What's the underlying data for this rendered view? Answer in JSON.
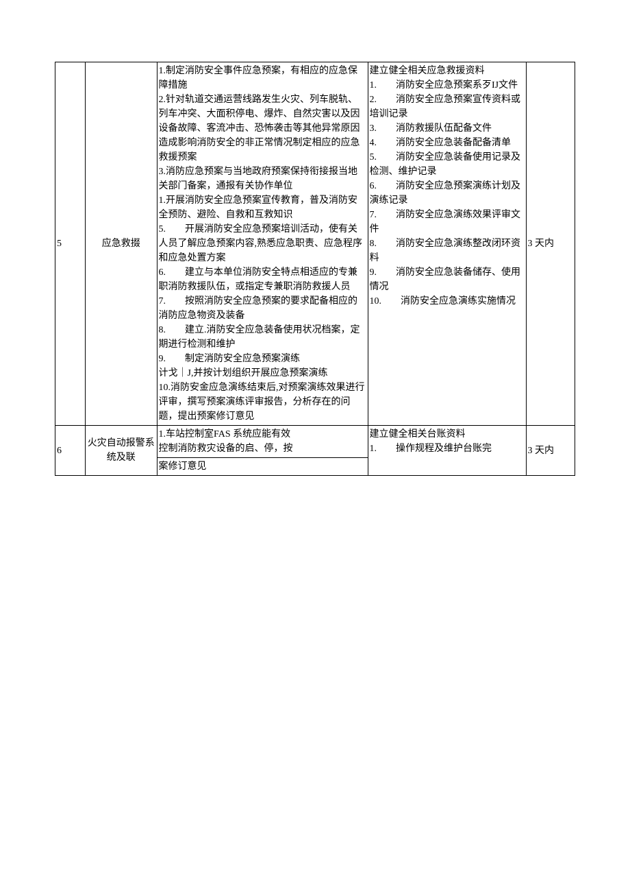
{
  "table": {
    "rows": [
      {
        "num": "5",
        "category": "应急救掇",
        "main": "1.制定消防安全事件应急预案，有相应的应急保障措施\n2.针对轨道交通运营线路发生火灾、列车脱轨、列车冲突、大面积停电、爆炸、自然灾害以及因设备故障、客流冲击、恐怖袭击等其他异常原因造成影响消防安全的非正常情况制定相应的应急救援预案\n3.消防应急预案与当地政府预案保持衔接报当地关部门备案，通报有关协作单位\n1.开展消防安全应急预案宣传教育，普及消防安全预防、避险、自救和互救知识\n5.　　开展消防安全应急预案培训活动，使有关人员了解应急预案内容,熟悉应急职责、应急程序和应急处置方案\n6.　　建立与本单位消防安全特点相适应的专兼职消防救援队伍，或指定专兼职消防救援人员\n7.　　按照消防安全应急预案的要求配备相应的消防应急物资及装备\n8.　　建立.消防安全应急装备使用状况档案，定期进行检测和维护\n9.　　制定消防安全应急预案演练\n计戈｜J,并按计划组织开展应急预案演练\n10.消防安金应急演练结束后,对预案演练效果进行评审，撰写预案演练评审报告，分析存在的问题，提出预案修订意见",
        "docs": "建立健全相关应急救援资料\n1.　　消防安全应急预案系歹IJ文件\n2.　　消防安全应急预案宣传资料或培训记录\n3.　　消防救援队伍配备文件\n4.　　消防安全应急装备配备清单\n5.　　消防安全应急装备使用记录及检测、维护记录\n6.　　消防安全应急预案演练计划及演练记录\n7.　　消防安全应急演练效果评审文件\n8.　　消防安全应急演练整改闭环资料\n9.　　消防安全应急装备储存、使用情况\n10.　　消防安全应急演练实施情况",
        "time": "3 天内"
      },
      {
        "num": "6",
        "category": "火灾自动报警系统及联",
        "main": "1.车站控制室FAS 系统应能有效\n控制消防救灾设备的启、停，按",
        "docs": "建立健全相关台账资料\n1.　　操作规程及维护台账完",
        "time": "3 天内"
      }
    ],
    "footer_partial": "案修订意见"
  },
  "colors": {
    "text": "#000000",
    "border": "#000000",
    "background": "#ffffff"
  },
  "font": {
    "family": "SimSun",
    "size_pt": 10.5
  }
}
